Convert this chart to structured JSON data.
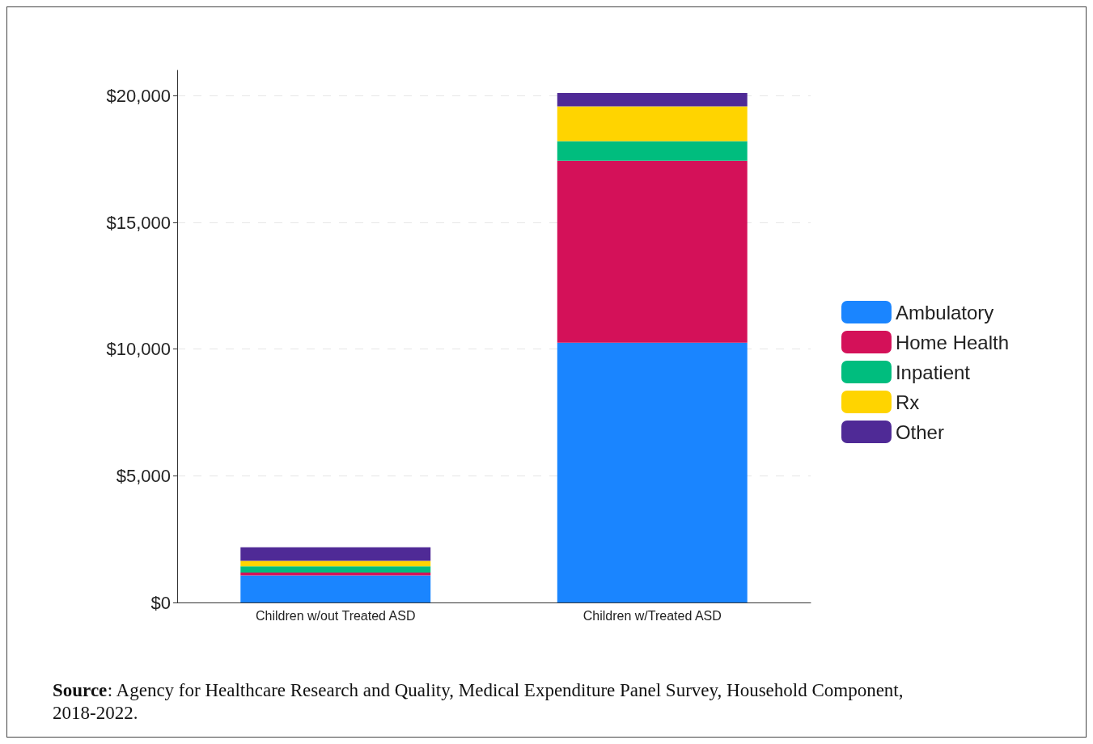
{
  "chart_data": {
    "type": "bar",
    "stacked": true,
    "categories": [
      "Children w/out Treated ASD",
      "Children w/Treated ASD"
    ],
    "series": [
      {
        "name": "Ambulatory",
        "color": "#1a85ff",
        "values": [
          1070,
          10250
        ]
      },
      {
        "name": "Home Health",
        "color": "#d41159",
        "values": [
          110,
          7180
        ]
      },
      {
        "name": "Inpatient",
        "color": "#00bd7e",
        "values": [
          250,
          780
        ]
      },
      {
        "name": "Rx",
        "color": "#ffd400",
        "values": [
          210,
          1370
        ]
      },
      {
        "name": "Other",
        "color": "#4f2a96",
        "values": [
          540,
          530
        ]
      }
    ],
    "ylim": [
      0,
      21000
    ],
    "yticks": [
      {
        "value": 0,
        "label": "$0"
      },
      {
        "value": 5000,
        "label": "$5,000"
      },
      {
        "value": 10000,
        "label": "$10,000"
      },
      {
        "value": 15000,
        "label": "$15,000"
      },
      {
        "value": 20000,
        "label": "$20,000"
      }
    ],
    "grid": "y",
    "legend": "right",
    "annotations": [
      "Source: Agency for Healthcare Research and Quality, Medical Expenditure Panel Survey, Household Component, 2018-2022."
    ]
  }
}
